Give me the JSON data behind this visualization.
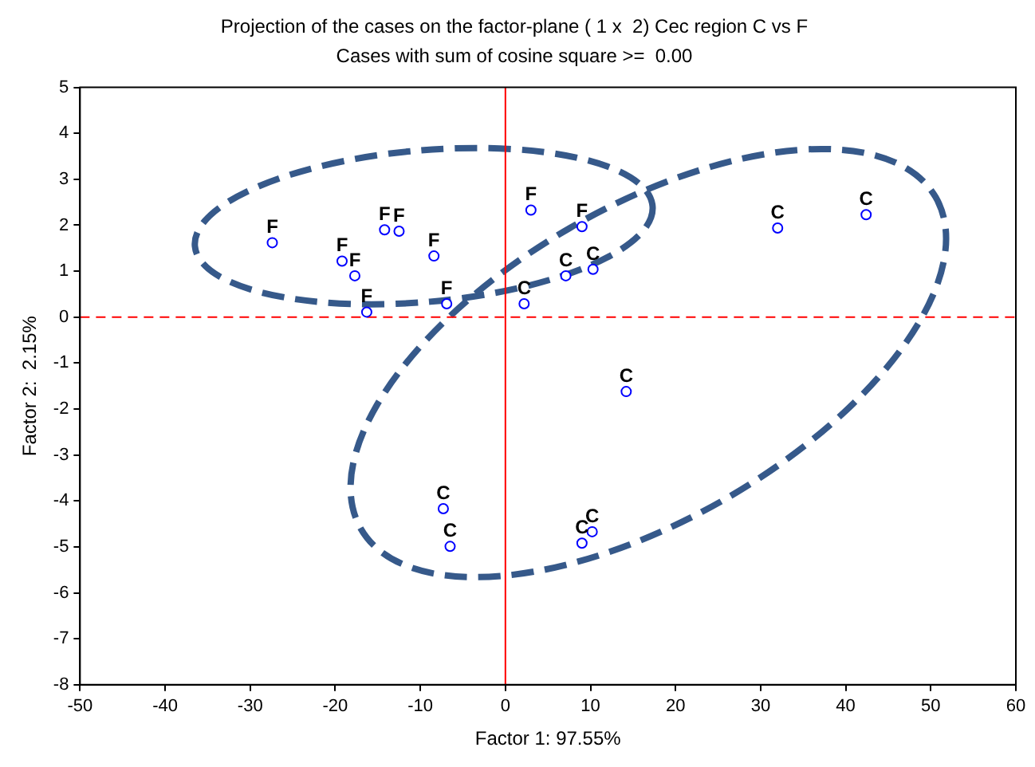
{
  "chart_data": {
    "type": "scatter",
    "title": "Projection of the cases on the factor-plane ( 1 x  2) Cec region C vs F",
    "subtitle": "Cases with sum of cosine square >=  0.00",
    "xlabel": "Factor 1: 97.55%",
    "ylabel": "Factor 2:  2.15%",
    "series": [
      {
        "name": "F",
        "color": "#0000ff",
        "x": [
          -27.4,
          -19.2,
          -17.7,
          -16.3,
          -14.2,
          -12.5,
          -8.4,
          -6.9,
          3.0,
          9.0
        ],
        "values": [
          1.62,
          1.22,
          0.9,
          0.11,
          1.9,
          1.87,
          1.33,
          0.29,
          2.33,
          1.97
        ]
      },
      {
        "name": "C",
        "color": "#0000ff",
        "x": [
          2.2,
          7.1,
          10.3,
          32.0,
          42.4,
          14.2,
          -7.3,
          -6.5,
          9.0,
          10.2
        ],
        "values": [
          0.29,
          0.9,
          1.04,
          1.94,
          2.23,
          -1.62,
          -4.17,
          -4.99,
          -4.92,
          -4.67
        ]
      }
    ],
    "xlim": [
      -50,
      60
    ],
    "xticks": [
      -50,
      -40,
      -30,
      -20,
      -10,
      0,
      10,
      20,
      30,
      40,
      50,
      60
    ],
    "ylim": [
      -8,
      5
    ],
    "yticks": [
      -8,
      -7,
      -6,
      -5,
      -4,
      -3,
      -2,
      -1,
      0,
      1,
      2,
      3,
      4,
      5
    ],
    "ref_lines": [
      {
        "axis": "x",
        "value": 0,
        "color": "#ff0000",
        "line_style": "solid"
      },
      {
        "axis": "y",
        "value": 0,
        "color": "#ff0000",
        "line_style": "dashed"
      }
    ],
    "grid": false,
    "legend": false,
    "marker": "circle"
  }
}
